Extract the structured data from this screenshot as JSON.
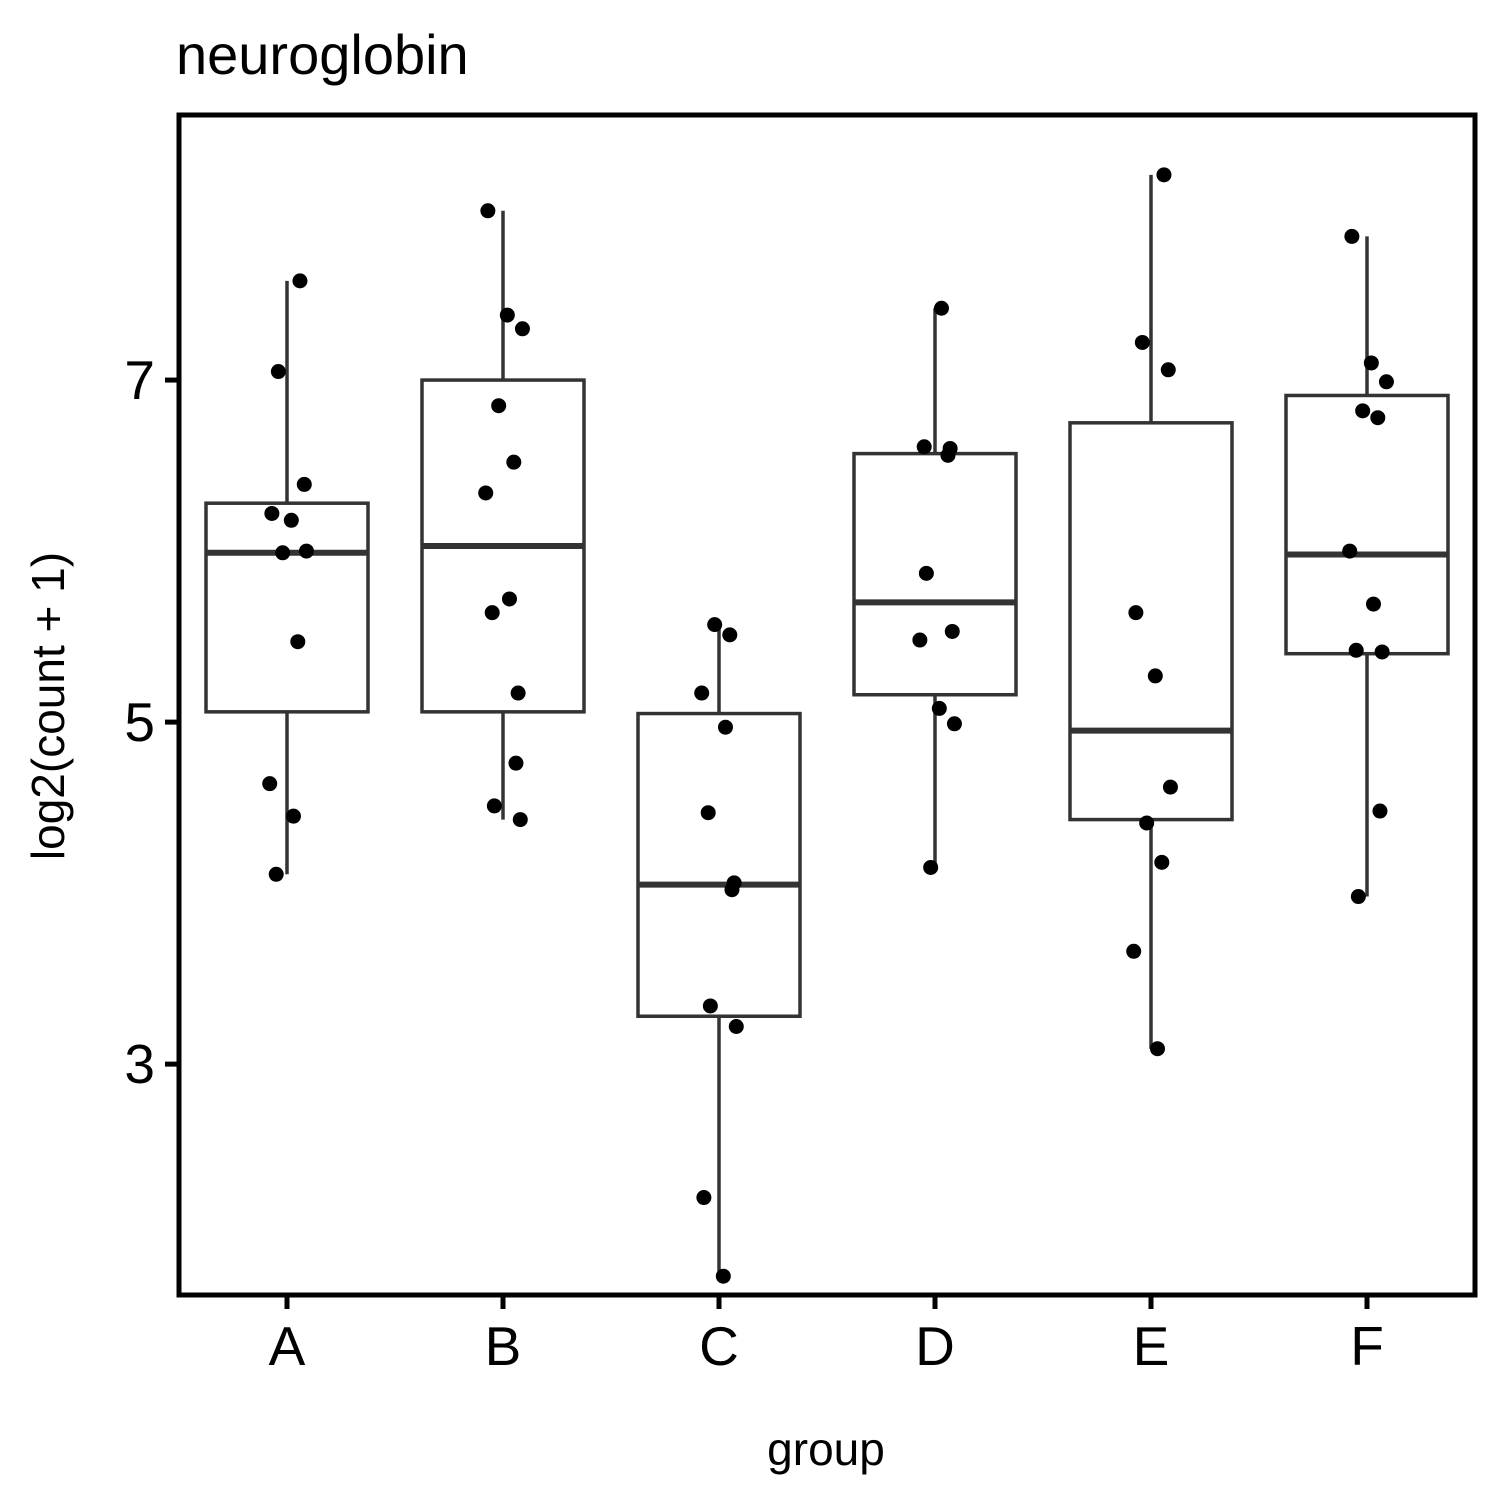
{
  "chart_data": {
    "type": "box",
    "title": "neuroglobin",
    "xlabel": "group",
    "ylabel": "log2(count + 1)",
    "ylim": [
      1.65,
      8.55
    ],
    "yticks": [
      3,
      5,
      7
    ],
    "categories": [
      "A",
      "B",
      "C",
      "D",
      "E",
      "F"
    ],
    "boxes": [
      {
        "group": "A",
        "whisker_low": 4.11,
        "q1": 5.06,
        "median": 5.99,
        "q3": 6.28,
        "whisker_high": 7.58
      },
      {
        "group": "B",
        "whisker_low": 4.43,
        "q1": 5.06,
        "median": 6.03,
        "q3": 7.0,
        "whisker_high": 7.99
      },
      {
        "group": "C",
        "whisker_low": 1.76,
        "q1": 3.28,
        "median": 4.05,
        "q3": 5.05,
        "whisker_high": 5.57
      },
      {
        "group": "D",
        "whisker_low": 4.15,
        "q1": 5.16,
        "median": 5.7,
        "q3": 6.57,
        "whisker_high": 7.42
      },
      {
        "group": "E",
        "whisker_low": 3.09,
        "q1": 4.43,
        "median": 4.95,
        "q3": 6.75,
        "whisker_high": 8.2
      },
      {
        "group": "F",
        "whisker_low": 3.98,
        "q1": 5.4,
        "median": 5.98,
        "q3": 6.91,
        "whisker_high": 7.84
      }
    ],
    "points": [
      {
        "group": "A",
        "y": [
          7.58,
          7.05,
          6.39,
          6.22,
          6.18,
          6.0,
          5.99,
          5.47,
          4.64,
          4.45,
          4.11
        ]
      },
      {
        "group": "B",
        "y": [
          7.99,
          7.38,
          7.3,
          6.85,
          6.52,
          6.34,
          5.72,
          5.64,
          5.17,
          4.76,
          4.51,
          4.43
        ]
      },
      {
        "group": "C",
        "y": [
          5.57,
          5.51,
          5.17,
          4.97,
          4.47,
          4.06,
          4.02,
          3.34,
          3.22,
          2.22,
          1.76
        ]
      },
      {
        "group": "D",
        "y": [
          7.42,
          6.61,
          6.6,
          6.56,
          5.87,
          5.53,
          5.48,
          5.08,
          4.99,
          4.15
        ]
      },
      {
        "group": "E",
        "y": [
          8.2,
          7.22,
          7.06,
          5.64,
          5.27,
          4.62,
          4.41,
          4.18,
          3.66,
          3.09
        ]
      },
      {
        "group": "F",
        "y": [
          7.84,
          7.1,
          6.99,
          6.82,
          6.78,
          6.0,
          5.69,
          5.42,
          5.41,
          4.48,
          3.98
        ]
      }
    ]
  }
}
